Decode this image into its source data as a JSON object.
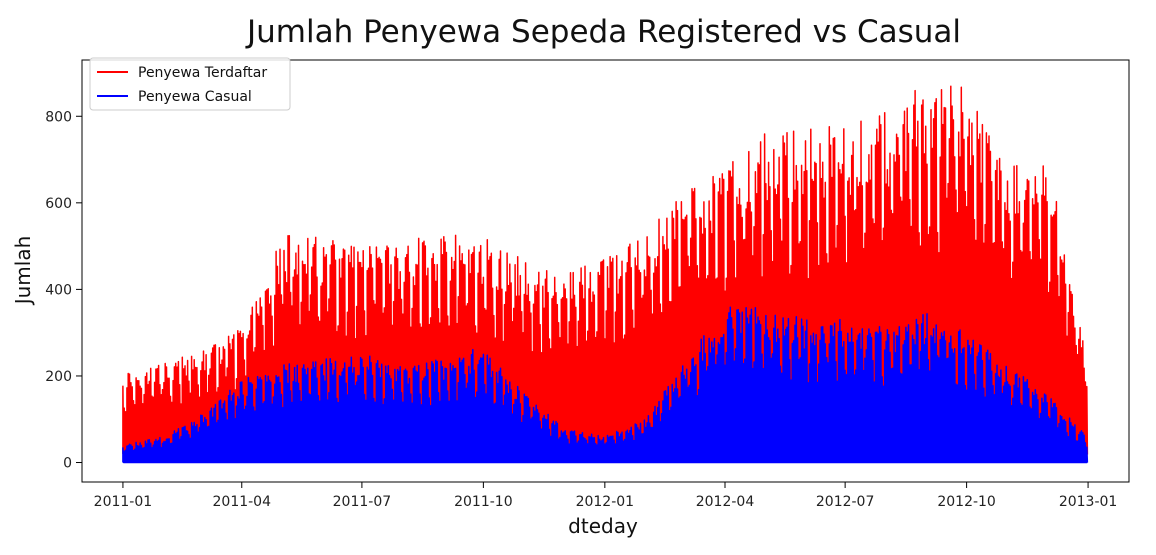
{
  "chart_data": {
    "type": "line",
    "title": "Jumlah Penyewa Sepeda Registered vs Casual",
    "xlabel": "dteday",
    "ylabel": "Jumlah",
    "xlim": [
      "2010-12-01",
      "2013-02-01"
    ],
    "ylim": [
      -45,
      930
    ],
    "yticks": [
      0,
      200,
      400,
      600,
      800
    ],
    "xticks": [
      {
        "date": "2011-01-01",
        "label": "2011-01"
      },
      {
        "date": "2011-04-01",
        "label": "2011-04"
      },
      {
        "date": "2011-07-01",
        "label": "2011-07"
      },
      {
        "date": "2011-10-01",
        "label": "2011-10"
      },
      {
        "date": "2012-01-01",
        "label": "2012-01"
      },
      {
        "date": "2012-04-01",
        "label": "2012-04"
      },
      {
        "date": "2012-07-01",
        "label": "2012-07"
      },
      {
        "date": "2012-10-01",
        "label": "2012-10"
      },
      {
        "date": "2013-01-01",
        "label": "2013-01"
      }
    ],
    "grid": false,
    "legend_position": "top-left",
    "series": [
      {
        "name": "Penyewa Terdaftar",
        "color": "#ff0000",
        "dates": [
          "2011-01-01",
          "2011-02-01",
          "2011-03-01",
          "2011-04-01",
          "2011-05-01",
          "2011-06-01",
          "2011-07-01",
          "2011-08-01",
          "2011-09-01",
          "2011-10-01",
          "2011-11-01",
          "2011-12-01",
          "2012-01-01",
          "2012-02-01",
          "2012-03-01",
          "2012-04-01",
          "2012-05-01",
          "2012-06-01",
          "2012-07-01",
          "2012-08-01",
          "2012-09-01",
          "2012-10-01",
          "2012-11-01",
          "2012-12-01",
          "2012-12-31"
        ],
        "peak_values": [
          210,
          230,
          260,
          310,
          530,
          520,
          500,
          510,
          530,
          520,
          470,
          440,
          480,
          520,
          650,
          680,
          760,
          770,
          780,
          810,
          880,
          870,
          700,
          720,
          240
        ],
        "base_values": [
          20,
          20,
          20,
          30,
          40,
          50,
          50,
          50,
          40,
          35,
          25,
          20,
          20,
          20,
          30,
          40,
          45,
          50,
          50,
          55,
          50,
          40,
          30,
          30,
          30
        ]
      },
      {
        "name": "Penyewa Casual",
        "color": "#0000ff",
        "dates": [
          "2011-01-01",
          "2011-02-01",
          "2011-03-01",
          "2011-04-01",
          "2011-05-01",
          "2011-06-01",
          "2011-07-01",
          "2011-08-01",
          "2011-09-01",
          "2011-10-01",
          "2011-11-01",
          "2011-12-01",
          "2012-01-01",
          "2012-02-01",
          "2012-03-01",
          "2012-04-01",
          "2012-05-01",
          "2012-06-01",
          "2012-07-01",
          "2012-08-01",
          "2012-09-01",
          "2012-10-01",
          "2012-11-01",
          "2012-12-01",
          "2012-12-31"
        ],
        "peak_values": [
          40,
          60,
          110,
          190,
          230,
          240,
          250,
          230,
          240,
          270,
          160,
          80,
          60,
          100,
          240,
          360,
          360,
          330,
          340,
          310,
          350,
          300,
          230,
          160,
          60
        ],
        "base_values": [
          0,
          0,
          0,
          0,
          0,
          0,
          0,
          0,
          0,
          0,
          0,
          0,
          0,
          0,
          0,
          0,
          0,
          0,
          0,
          0,
          0,
          0,
          0,
          0,
          0
        ]
      }
    ]
  }
}
